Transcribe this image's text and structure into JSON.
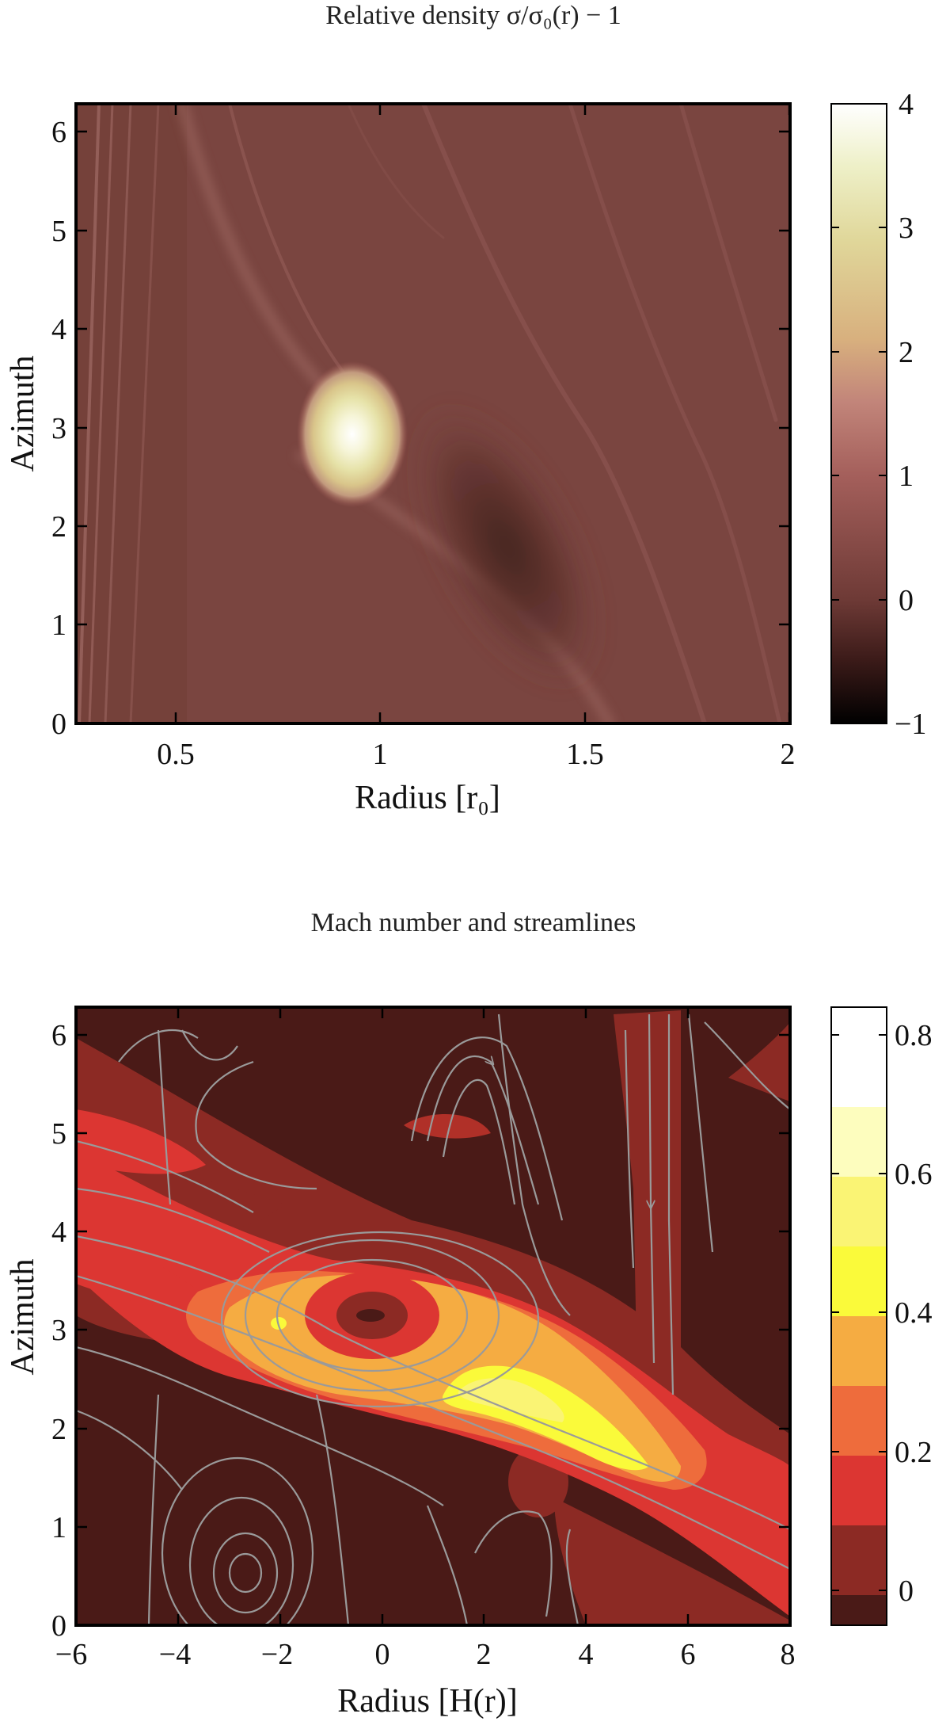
{
  "chart_data": [
    {
      "type": "heatmap",
      "title": "Relative density σ/σ₀(r) − 1",
      "xlabel": "Radius [r₀]",
      "ylabel": "Azimuth",
      "xlim": [
        0.27,
        2.0
      ],
      "ylim": [
        0,
        6.28
      ],
      "xticks": [
        "0.5",
        "1",
        "1.5",
        "2"
      ],
      "xtick_values": [
        0.5,
        1,
        1.5,
        2
      ],
      "yticks": [
        "0",
        "1",
        "2",
        "3",
        "4",
        "5",
        "6"
      ],
      "ytick_values": [
        0,
        1,
        2,
        3,
        4,
        5,
        6
      ],
      "colorbar": {
        "range": [
          -1,
          4
        ],
        "ticks": [
          "−1",
          "0",
          "1",
          "2",
          "3",
          "4"
        ],
        "tick_values": [
          -1,
          0,
          1,
          2,
          3,
          4
        ],
        "colormap": [
          "#000000",
          "#3a1a18",
          "#6e3a36",
          "#a45f5b",
          "#c2857a",
          "#d8b07e",
          "#e0d79a",
          "#eef0c8",
          "#ffffff"
        ]
      },
      "features": {
        "background_value": 0.1,
        "peak": {
          "r": 0.92,
          "phi": 2.85,
          "value": 4
        },
        "deficit_region": {
          "r_range": [
            1.05,
            1.55
          ],
          "phi_range": [
            0.8,
            2.6
          ],
          "value": -0.4
        }
      },
      "grid": false
    },
    {
      "type": "heatmap",
      "title": "Mach number and streamlines",
      "xlabel": "Radius [H(r)]",
      "ylabel": "Azimuth",
      "xlim": [
        -6,
        8
      ],
      "ylim": [
        0,
        6.28
      ],
      "xticks": [
        "−6",
        "−4",
        "−2",
        "0",
        "2",
        "4",
        "6",
        "8"
      ],
      "xtick_values": [
        -6,
        -4,
        -2,
        0,
        2,
        4,
        6,
        8
      ],
      "yticks": [
        "0",
        "1",
        "2",
        "3",
        "4",
        "5",
        "6"
      ],
      "ytick_values": [
        0,
        1,
        2,
        3,
        4,
        5,
        6
      ],
      "colorbar": {
        "range": [
          -0.05,
          0.84
        ],
        "ticks": [
          "0",
          "0.2",
          "0.4",
          "0.6",
          "0.8"
        ],
        "tick_values": [
          0,
          0.2,
          0.4,
          0.6,
          0.8
        ],
        "levels": [
          -0.05,
          0.05,
          0.15,
          0.25,
          0.35,
          0.45,
          0.55,
          0.65,
          0.75,
          0.84
        ],
        "level_colors": [
          "#4a1a17",
          "#8c2a24",
          "#dc3632",
          "#ee6c3c",
          "#f5ac42",
          "#fafa3a",
          "#faf474",
          "#fdfdbe",
          "#ffffff"
        ]
      },
      "features": {
        "streamline_color": "#9a9a9a",
        "vortex_centers": [
          {
            "x": -0.3,
            "phi": 2.9
          },
          {
            "x": -2.8,
            "phi": 0.65
          },
          {
            "x": 2.2,
            "phi": 5.0
          }
        ],
        "band": {
          "from": {
            "x": -6,
            "phi": 4.9
          },
          "to": {
            "x": 8,
            "phi": 0.3
          }
        }
      },
      "grid": false
    }
  ]
}
